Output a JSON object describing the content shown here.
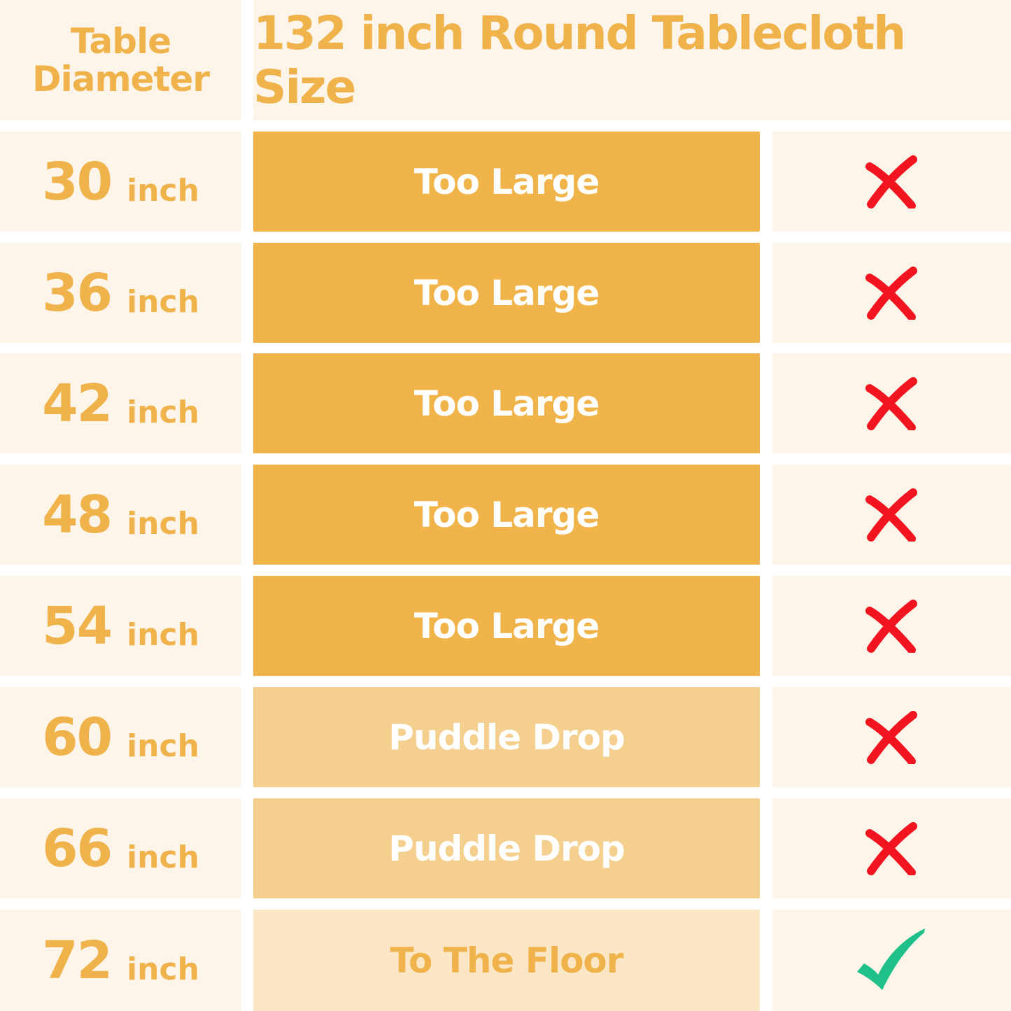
{
  "header": {
    "left_line1": "Table",
    "left_line2": "Diameter",
    "title": "132 inch Round Tablecloth Size"
  },
  "colors": {
    "accent": "#f0b24a",
    "too_large": "#f0b44a",
    "puddle": "#f5cf8e",
    "floor": "#fbe6c6",
    "cross": "#f2141e",
    "check": "#1fc08a",
    "background": "#fdf5ea"
  },
  "rows": [
    {
      "diameter": "30",
      "unit": "inch",
      "fit": "Too Large",
      "type": "too_large",
      "ok": false,
      "icon": "cross-icon"
    },
    {
      "diameter": "36",
      "unit": "inch",
      "fit": "Too Large",
      "type": "too_large",
      "ok": false,
      "icon": "cross-icon"
    },
    {
      "diameter": "42",
      "unit": "inch",
      "fit": "Too Large",
      "type": "too_large",
      "ok": false,
      "icon": "cross-icon"
    },
    {
      "diameter": "48",
      "unit": "inch",
      "fit": "Too Large",
      "type": "too_large",
      "ok": false,
      "icon": "cross-icon"
    },
    {
      "diameter": "54",
      "unit": "inch",
      "fit": "Too Large",
      "type": "too_large",
      "ok": false,
      "icon": "cross-icon"
    },
    {
      "diameter": "60",
      "unit": "inch",
      "fit": "Puddle Drop",
      "type": "puddle",
      "ok": false,
      "icon": "cross-icon"
    },
    {
      "diameter": "66",
      "unit": "inch",
      "fit": "Puddle Drop",
      "type": "puddle",
      "ok": false,
      "icon": "cross-icon"
    },
    {
      "diameter": "72",
      "unit": "inch",
      "fit": "To The Floor",
      "type": "floor",
      "ok": true,
      "icon": "check-icon"
    }
  ]
}
